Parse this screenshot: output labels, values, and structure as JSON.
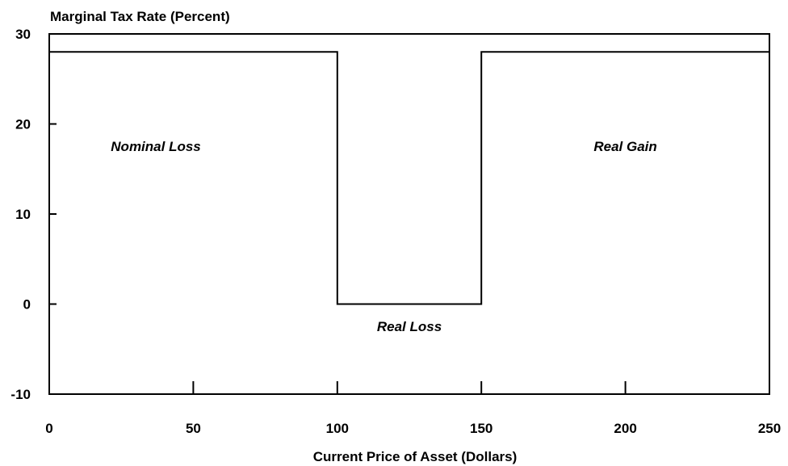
{
  "chart_data": {
    "type": "line",
    "ylabel": "Marginal Tax Rate (Percent)",
    "xlabel": "Current Price of Asset (Dollars)",
    "xlim": [
      0,
      250
    ],
    "ylim": [
      -10,
      30
    ],
    "x_ticks": [
      0,
      50,
      100,
      150,
      200,
      250
    ],
    "y_ticks": [
      30,
      20,
      10,
      0,
      -10
    ],
    "grid": false,
    "series": [
      {
        "points": [
          [
            0,
            28
          ],
          [
            100,
            28
          ],
          [
            100,
            0
          ],
          [
            150,
            0
          ],
          [
            150,
            28
          ],
          [
            250,
            28
          ]
        ]
      }
    ],
    "annotations": [
      {
        "text": "Nominal Loss",
        "x": 37,
        "y": 17
      },
      {
        "text": "Real Loss",
        "x": 125,
        "y": -3
      },
      {
        "text": "Real Gain",
        "x": 200,
        "y": 17
      }
    ]
  }
}
